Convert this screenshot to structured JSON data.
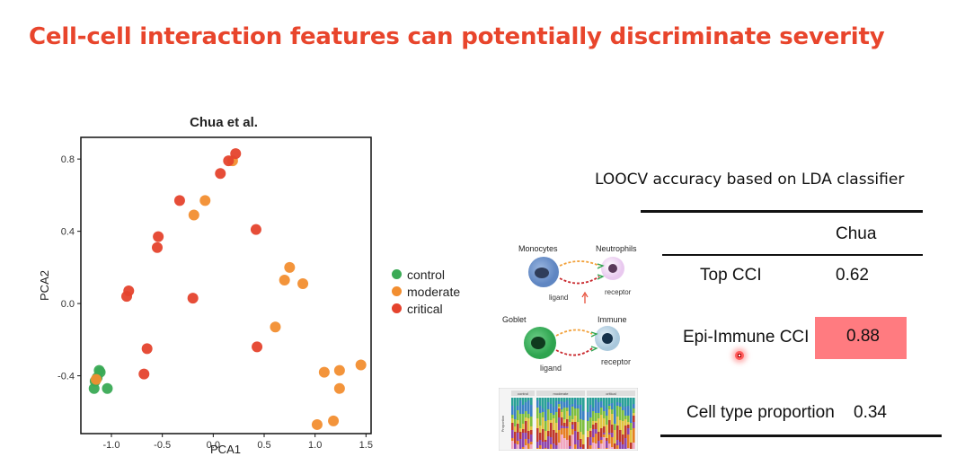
{
  "slide": {
    "title": "Cell-cell interaction features can potentially discriminate severity"
  },
  "chart_data": {
    "type": "scatter",
    "title": "Chua et al.",
    "xlabel": "PCA1",
    "ylabel": "PCA2",
    "xlim": [
      -1.3,
      1.55
    ],
    "ylim": [
      -0.72,
      0.92
    ],
    "xticks": [
      -1.0,
      -0.5,
      0.0,
      0.5,
      1.0,
      1.5
    ],
    "xtick_labels": [
      "-1.0",
      "-0.5",
      "0.0",
      "0.5",
      "1.0",
      "1.5"
    ],
    "yticks": [
      -0.4,
      0.0,
      0.4,
      0.8
    ],
    "ytick_labels": [
      "-0.4",
      "0.0",
      "0.4",
      "0.8"
    ],
    "grid": false,
    "legend_position": "right",
    "series": [
      {
        "name": "control",
        "color": "#3aaa55",
        "points": [
          [
            -1.12,
            -0.37
          ],
          [
            -1.11,
            -0.38
          ],
          [
            -1.14,
            -0.41
          ],
          [
            -1.16,
            -0.43
          ],
          [
            -1.17,
            -0.47
          ],
          [
            -1.04,
            -0.47
          ]
        ]
      },
      {
        "name": "moderate",
        "color": "#f28e30",
        "points": [
          [
            0.19,
            0.79
          ],
          [
            -0.08,
            0.57
          ],
          [
            -0.19,
            0.49
          ],
          [
            0.75,
            0.2
          ],
          [
            0.7,
            0.13
          ],
          [
            0.88,
            0.11
          ],
          [
            0.61,
            -0.13
          ],
          [
            1.09,
            -0.38
          ],
          [
            1.24,
            -0.37
          ],
          [
            1.24,
            -0.47
          ],
          [
            1.45,
            -0.34
          ],
          [
            1.18,
            -0.65
          ],
          [
            1.02,
            -0.67
          ],
          [
            -1.15,
            -0.42
          ]
        ]
      },
      {
        "name": "critical",
        "color": "#e5432d",
        "points": [
          [
            0.22,
            0.83
          ],
          [
            0.15,
            0.79
          ],
          [
            0.07,
            0.72
          ],
          [
            -0.33,
            0.57
          ],
          [
            0.42,
            0.41
          ],
          [
            -0.54,
            0.37
          ],
          [
            -0.55,
            0.31
          ],
          [
            -0.83,
            0.07
          ],
          [
            -0.85,
            0.04
          ],
          [
            -0.2,
            0.03
          ],
          [
            -0.65,
            -0.25
          ],
          [
            0.43,
            -0.24
          ],
          [
            -0.68,
            -0.39
          ]
        ]
      }
    ]
  },
  "accuracy": {
    "title": "LOOCV accuracy based on LDA classifier",
    "column": "Chua",
    "rows": [
      {
        "label": "Top CCI",
        "value": "0.62"
      },
      {
        "label": "Epi-Immune CCI",
        "value": "0.88"
      },
      {
        "label": "Cell type proportion",
        "value": "0.34"
      }
    ],
    "highlight_color": "#ff7b80"
  },
  "diagram": {
    "monocytes": "Monocytes",
    "neutrophils": "Neutrophils",
    "goblet": "Goblet",
    "immune": "Immune",
    "ligand1": "ligand",
    "receptor1": "receptor",
    "ligand2": "ligand",
    "receptor2": "receptor"
  },
  "bars_panel": {
    "headers": [
      "control",
      "moderate",
      "critical"
    ],
    "ylabel": "Proportion"
  }
}
